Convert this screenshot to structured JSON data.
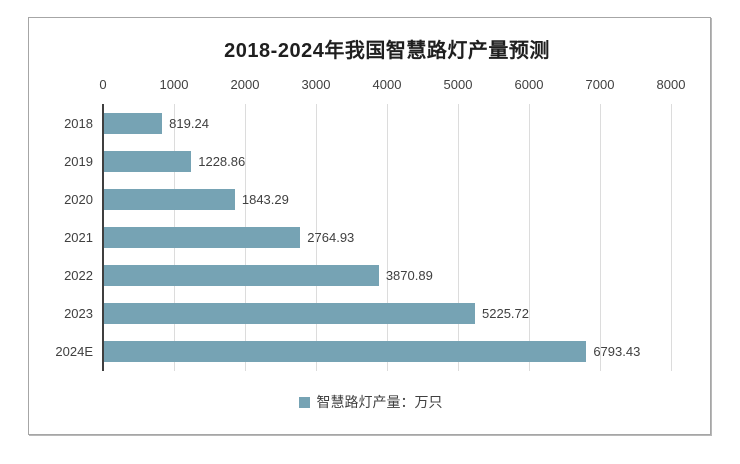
{
  "chart": {
    "title": "2018-2024年我国智慧路灯产量预测",
    "legend": {
      "label": "智慧路灯产量：万只"
    },
    "colors": {
      "bar": "#76a3b4",
      "gridline": "#dcdcdc",
      "axis_line": "#3f3f3f",
      "text": "#404040",
      "title_text": "#1f1f1f",
      "card_border": "#a6a6a6"
    }
  },
  "chart_data": {
    "type": "bar",
    "orientation": "horizontal",
    "title": "2018-2024年我国智慧路灯产量预测",
    "categories": [
      "2018",
      "2019",
      "2020",
      "2021",
      "2022",
      "2023",
      "2024E"
    ],
    "values": [
      819.24,
      1228.86,
      1843.29,
      2764.93,
      3870.89,
      5225.72,
      6793.43
    ],
    "value_labels": [
      "819.24",
      "1228.86",
      "1843.29",
      "2764.93",
      "3870.89",
      "5225.72",
      "6793.43"
    ],
    "series_name": "智慧路灯产量：万只",
    "unit": "万只",
    "xlim": [
      0,
      8000
    ],
    "x_ticks": [
      0,
      1000,
      2000,
      3000,
      4000,
      5000,
      6000,
      7000,
      8000
    ],
    "grid": true,
    "value_axis_position": "top",
    "legend_position": "bottom"
  }
}
